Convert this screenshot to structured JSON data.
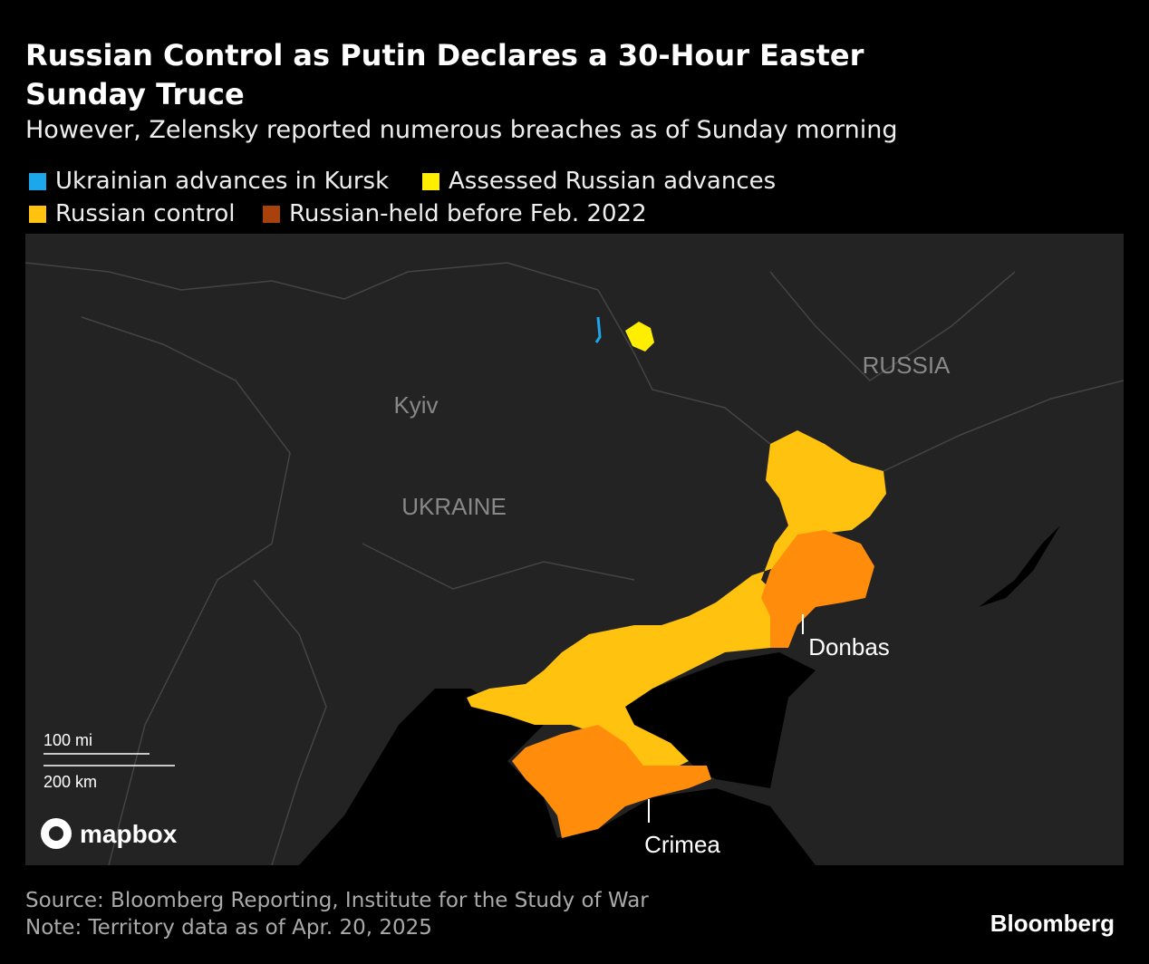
{
  "header": {
    "title": "Russian Control as Putin Declares a 30-Hour Easter Sunday Truce",
    "subtitle": "However, Zelensky reported numerous breaches as of Sunday morning"
  },
  "legend": {
    "items": [
      {
        "label": "Ukrainian advances in Kursk",
        "color": "#1ca6ec"
      },
      {
        "label": "Assessed Russian advances",
        "color": "#ffee00"
      },
      {
        "label": "Russian control",
        "color": "#ffc20e"
      },
      {
        "label": "Russian-held before Feb. 2022",
        "color": "#a8410c"
      }
    ]
  },
  "map": {
    "labels": {
      "russia": "RUSSIA",
      "kyiv": "Kyiv",
      "ukraine": "UKRAINE",
      "donbas": "Donbas",
      "crimea": "Crimea"
    },
    "scale": {
      "miles": "100 mi",
      "km": "200 km"
    },
    "attribution": "mapbox"
  },
  "footer": {
    "source": "Source: Bloomberg Reporting, Institute for the Study of War",
    "note": "Note: Territory data as of Apr. 20, 2025",
    "brand": "Bloomberg"
  }
}
